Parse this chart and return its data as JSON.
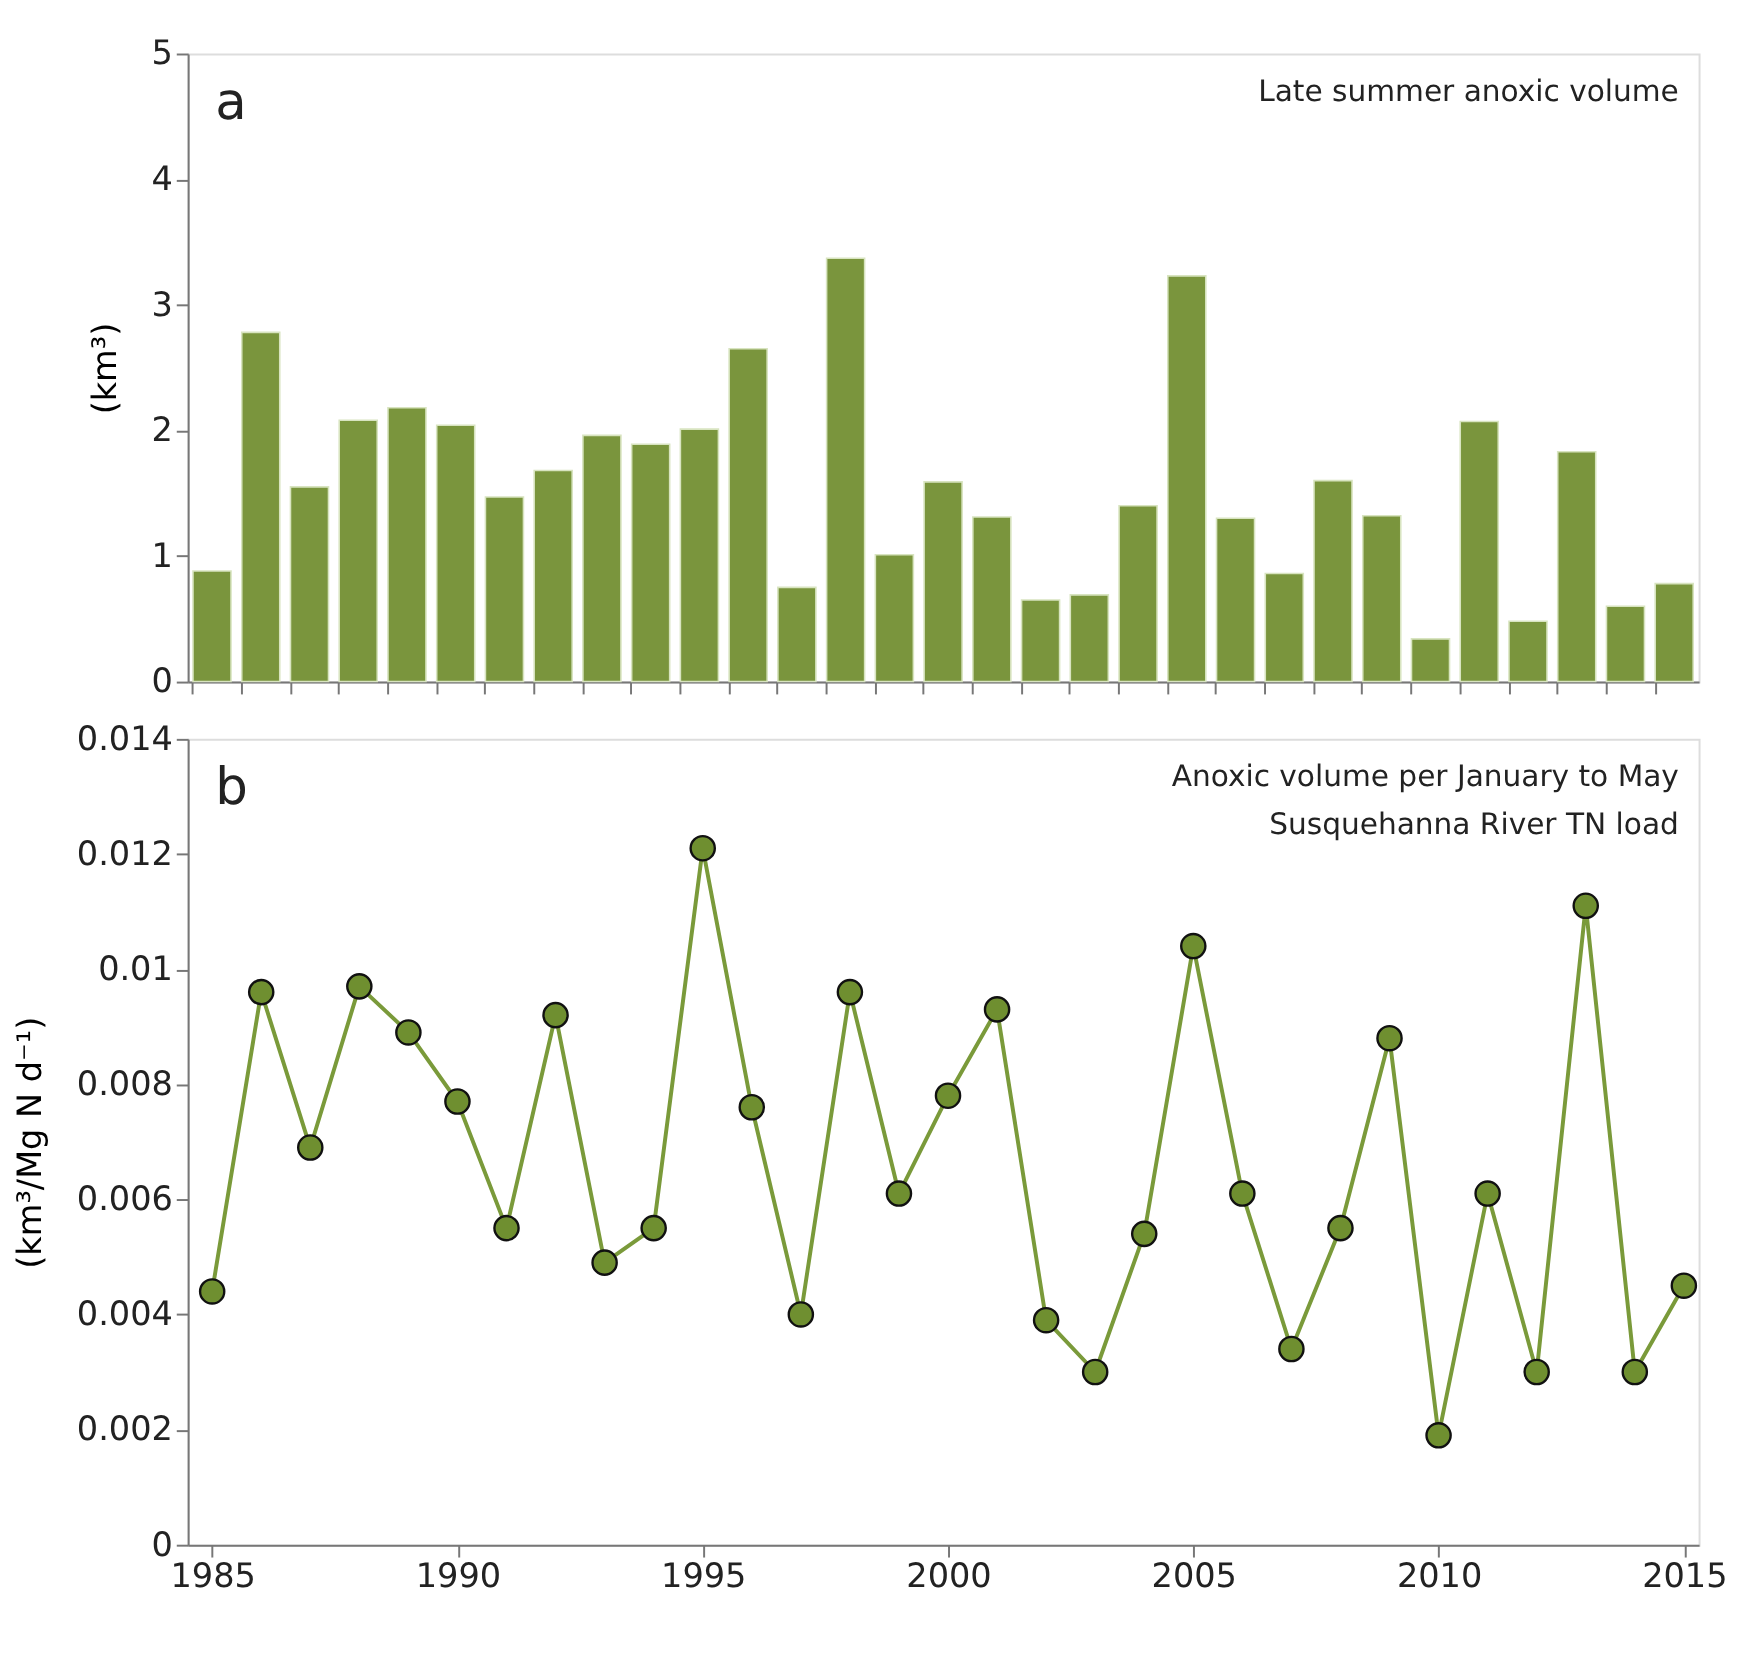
{
  "chart_data": [
    {
      "type": "bar",
      "ylabel": "(km³)",
      "annotations": [
        "a",
        "Late summer anoxic volume"
      ],
      "categories": [
        null,
        null,
        null,
        null,
        null,
        null,
        null,
        null,
        null,
        null,
        null,
        null,
        null,
        null,
        null,
        null,
        null,
        null,
        null,
        null,
        null,
        null,
        null,
        null,
        null,
        null,
        null,
        null,
        null,
        null,
        null
      ],
      "series": [
        {
          "color": "#7a953d",
          "values": [
            0.88,
            2.78,
            1.55,
            2.08,
            2.18,
            2.04,
            1.47,
            1.68,
            1.96,
            1.89,
            2.01,
            2.65,
            0.75,
            3.37,
            1.01,
            1.59,
            1.31,
            0.65,
            0.69,
            1.4,
            3.23,
            1.3,
            0.86,
            1.6,
            1.32,
            0.34,
            2.07,
            0.48,
            1.83,
            0.6,
            0.78
          ]
        }
      ],
      "ylim": [
        0,
        5
      ],
      "yticks": [
        0,
        1,
        2,
        3,
        4,
        5
      ],
      "tick_labels": "y",
      "grid": false
    },
    {
      "type": "line",
      "ylabel": "(km³/Mg N d⁻¹)",
      "annotations": [
        "b",
        "Anoxic volume per January to May\nSusquehanna River TN load"
      ],
      "x": [
        1985,
        1986,
        1987,
        1988,
        1989,
        1990,
        1991,
        1992,
        1993,
        1994,
        1995,
        1996,
        1997,
        1998,
        1999,
        2000,
        2001,
        2002,
        2003,
        2004,
        2005,
        2006,
        2007,
        2008,
        2009,
        2010,
        2011,
        2012,
        2013,
        2014,
        2015
      ],
      "series": [
        {
          "color": "#7a9a3a",
          "values": [
            0.0044,
            0.0096,
            0.0069,
            0.0097,
            0.0089,
            0.0077,
            0.0055,
            0.0092,
            0.0049,
            0.0055,
            0.0121,
            0.0076,
            0.004,
            0.0096,
            0.0061,
            0.0078,
            0.0093,
            0.0039,
            0.003,
            0.0054,
            0.0104,
            0.0061,
            0.0034,
            0.0055,
            0.0088,
            0.0019,
            0.0061,
            0.003,
            0.0111,
            0.003,
            0.0045
          ]
        }
      ],
      "marker": "circle",
      "xlim": [
        1984.5,
        2015.3
      ],
      "xticks": [
        1985,
        1990,
        1995,
        2000,
        2005,
        2010,
        2015
      ],
      "ylim": [
        0,
        0.014
      ],
      "yticks": [
        0,
        0.002,
        0.004,
        0.006,
        0.008,
        0.01,
        0.012,
        0.014
      ],
      "grid": false
    }
  ]
}
